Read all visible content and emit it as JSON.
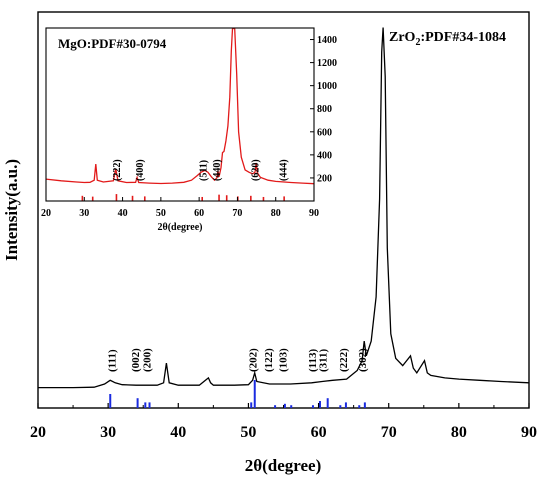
{
  "chart_data": [
    {
      "type": "line",
      "title": "",
      "xlabel": "2θ(degree)",
      "ylabel": "Intensity(a.u.)",
      "xlim": [
        20,
        90
      ],
      "x_ticks": [
        20,
        30,
        40,
        50,
        60,
        70,
        80,
        90
      ],
      "y_ticks_shown": false,
      "grid": false,
      "annotation": {
        "text_main": "ZrO",
        "text_sub": "2",
        "text_rest": ":PDF#34-1084",
        "position": "top-right"
      },
      "series": [
        {
          "color": "#000000",
          "x": [
            20,
            25,
            28,
            29.5,
            30.3,
            31,
            32,
            34,
            37,
            37.9,
            38.3,
            38.7,
            40,
            43,
            44.3,
            44.6,
            45,
            48,
            50,
            50.6,
            50.9,
            51.2,
            53,
            56,
            59,
            60.5,
            62,
            64,
            65.5,
            66.2,
            66.5,
            66.8,
            67.5,
            68.2,
            68.7,
            69.0,
            69.2,
            69.5,
            69.8,
            70.3,
            71,
            72,
            73.1,
            73.5,
            74,
            75.1,
            75.5,
            76,
            78,
            80,
            83,
            86,
            90
          ],
          "y": [
            3,
            3,
            3.2,
            4.5,
            6,
            5,
            4.2,
            4,
            4,
            5,
            13,
            5,
            4,
            4,
            7,
            5,
            4,
            4,
            4.2,
            6,
            9,
            5.5,
            4.5,
            4.5,
            5,
            5.5,
            6,
            6.5,
            10,
            14,
            22,
            16,
            22,
            40,
            80,
            140,
            150,
            130,
            60,
            25,
            15,
            12,
            16,
            11,
            9,
            14,
            9,
            8,
            7,
            6.5,
            6,
            5.5,
            5
          ]
        }
      ],
      "reference_lines": {
        "color": "#1a2be0",
        "positions": [
          30.3,
          34.2,
          35.3,
          35.9,
          50.4,
          50.9,
          53.8,
          55.2,
          56.1,
          59.2,
          60.2,
          61.3,
          63.1,
          63.9,
          65.8,
          66.6
        ],
        "heights": [
          5,
          3.5,
          2,
          2,
          2,
          10,
          1,
          1.5,
          1,
          1,
          2.5,
          3.5,
          1,
          2,
          1,
          2
        ]
      },
      "peak_labels": [
        {
          "text": "(111)",
          "x": 30.6
        },
        {
          "text": "(002)",
          "x": 34.0
        },
        {
          "text": "(200)",
          "x": 35.6
        },
        {
          "text": "(202)",
          "x": 50.7
        },
        {
          "text": "(122)",
          "x": 52.9
        },
        {
          "text": "(103)",
          "x": 55.0
        },
        {
          "text": "(113)",
          "x": 59.2
        },
        {
          "text": "(311)",
          "x": 60.7
        },
        {
          "text": "(222)",
          "x": 63.6
        },
        {
          "text": "(302)",
          "x": 66.3
        }
      ]
    },
    {
      "type": "line",
      "title": "MgO:PDF#30-0794",
      "xlabel": "2θ(degree)",
      "ylabel": "",
      "xlim": [
        20,
        90
      ],
      "ylim": [
        0,
        1500
      ],
      "x_ticks": [
        20,
        30,
        40,
        50,
        60,
        70,
        80,
        90
      ],
      "y_ticks": [
        200,
        400,
        600,
        800,
        1000,
        1200,
        1400
      ],
      "y_axis_position": "right",
      "grid": false,
      "series": [
        {
          "color": "#e21a1a",
          "x": [
            20,
            24,
            28,
            30,
            31.5,
            32.6,
            33.0,
            33.4,
            35,
            37.6,
            38.2,
            38.8,
            41,
            43.4,
            43.8,
            44.2,
            47,
            50,
            53,
            56,
            58,
            59.5,
            60.5,
            61.5,
            62.3,
            63.2,
            64,
            64.6,
            64.9,
            65.2,
            65.7,
            66.1,
            66.5,
            67,
            67.5,
            68,
            68.4,
            68.7,
            69.0,
            69.3,
            69.8,
            70.3,
            71,
            72,
            73,
            74,
            74.6,
            74.9,
            75.2,
            76,
            78,
            80,
            84,
            87,
            90
          ],
          "y": [
            190,
            175,
            165,
            160,
            162,
            180,
            320,
            180,
            165,
            175,
            280,
            175,
            160,
            162,
            205,
            160,
            155,
            152,
            155,
            162,
            180,
            220,
            250,
            265,
            250,
            210,
            180,
            200,
            260,
            210,
            290,
            420,
            430,
            520,
            650,
            900,
            1300,
            1500,
            1500,
            1500,
            1100,
            600,
            380,
            270,
            250,
            235,
            250,
            330,
            245,
            205,
            180,
            170,
            160,
            155,
            150
          ]
        }
      ],
      "reference_lines": {
        "color": "#e21a1a",
        "positions": [
          29.5,
          32.2,
          38.4,
          42.6,
          45.8,
          60.8,
          65.2,
          67.2,
          70.1,
          73.5,
          76.8,
          82.2
        ],
        "heights": [
          45,
          38,
          60,
          45,
          40,
          35,
          55,
          50,
          40,
          45,
          35,
          40
        ]
      },
      "peak_labels": [
        {
          "text": "(222)",
          "x": 38.6
        },
        {
          "text": "(400)",
          "x": 44.5
        },
        {
          "text": "(511)",
          "x": 61.2
        },
        {
          "text": "(440)",
          "x": 64.7
        },
        {
          "text": "(620)",
          "x": 74.7
        },
        {
          "text": "(444)",
          "x": 82.0
        }
      ]
    }
  ]
}
